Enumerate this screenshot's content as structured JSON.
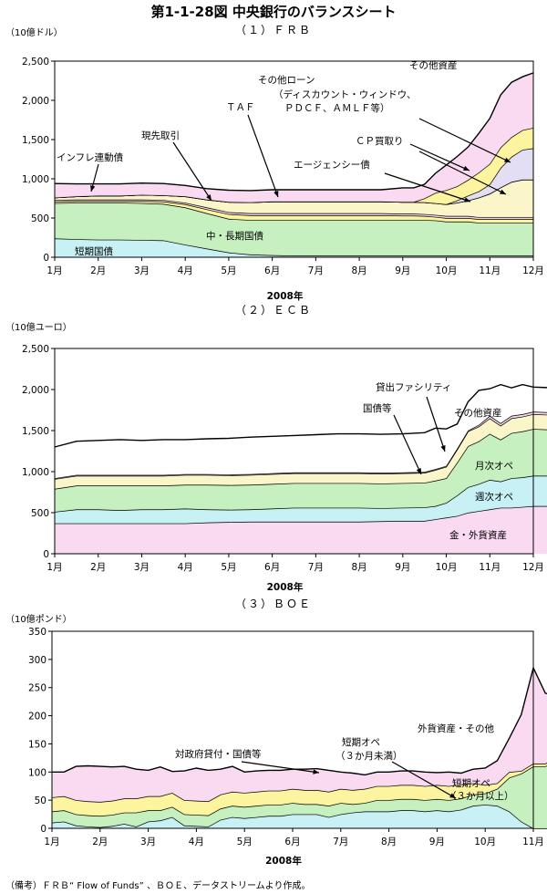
{
  "figure_title": "第1-1-28図 中央銀行のバランスシート",
  "note": "（備考）ＦＲＢ“ Flow of Funds” 、ＢＯＥ、データストリームより作成。",
  "colors": {
    "pink": "#f9d8ef",
    "purple": "#e2dcf3",
    "yellow": "#fdf39a",
    "green": "#c4efbd",
    "cyan": "#c5f0f6",
    "lightyellow": "#fbf6c6",
    "line": "#000000"
  },
  "chart_data": [
    {
      "type": "area",
      "title": "（１）ＦＲＢ",
      "unit": "（10億ドル）",
      "xlabel": "2008年",
      "x_labels": [
        "1月",
        "2月",
        "3月",
        "4月",
        "5月",
        "6月",
        "7月",
        "8月",
        "9月",
        "10月",
        "11月",
        "12月"
      ],
      "ylim": [
        0,
        2500
      ],
      "yticks": [
        "0",
        "500",
        "1,000",
        "1,500",
        "2,000",
        "2,500"
      ],
      "ytick_values": [
        0,
        500,
        1000,
        1500,
        2000,
        2500
      ],
      "x": [
        0,
        0.5,
        1,
        1.5,
        2,
        2.5,
        3,
        3.5,
        4,
        4.5,
        5,
        5.5,
        6,
        6.5,
        7,
        7.5,
        8,
        8.25,
        8.5,
        8.75,
        9,
        9.25,
        9.5,
        9.75,
        10,
        10.25,
        10.5,
        10.75,
        11
      ],
      "series": [
        {
          "name": "短期国債",
          "color": "cyan",
          "values": [
            240,
            230,
            225,
            225,
            220,
            215,
            160,
            110,
            60,
            35,
            25,
            20,
            20,
            20,
            20,
            20,
            20,
            20,
            20,
            20,
            20,
            20,
            20,
            20,
            20,
            20,
            20,
            20,
            20
          ]
        },
        {
          "name": "中・長期国債",
          "color": "green",
          "values": [
            450,
            465,
            470,
            470,
            470,
            465,
            475,
            450,
            430,
            440,
            450,
            455,
            455,
            455,
            455,
            455,
            455,
            455,
            455,
            450,
            435,
            435,
            435,
            420,
            420,
            420,
            420,
            420,
            420
          ]
        },
        {
          "name": "",
          "color": "yellow",
          "values": [
            20,
            20,
            20,
            20,
            25,
            30,
            40,
            50,
            60,
            60,
            60,
            60,
            60,
            60,
            60,
            60,
            55,
            55,
            50,
            45,
            45,
            45,
            45,
            45,
            45,
            45,
            45,
            45,
            45
          ]
        },
        {
          "name": "",
          "color": "pink",
          "values": [
            20,
            20,
            20,
            20,
            20,
            20,
            20,
            25,
            25,
            25,
            25,
            25,
            25,
            25,
            25,
            25,
            25,
            25,
            25,
            25,
            25,
            25,
            25,
            25,
            25,
            25,
            25,
            25,
            25
          ]
        },
        {
          "name": "TAF",
          "color": "lightyellow",
          "values": [
            30,
            40,
            50,
            50,
            60,
            60,
            80,
            100,
            130,
            140,
            150,
            150,
            150,
            150,
            150,
            150,
            150,
            150,
            150,
            150,
            150,
            170,
            200,
            250,
            300,
            380,
            450,
            480,
            480
          ]
        },
        {
          "name": "",
          "color": "yellow",
          "values": [
            0,
            0,
            0,
            0,
            0,
            0,
            0,
            0,
            0,
            0,
            0,
            0,
            0,
            0,
            0,
            0,
            0,
            0,
            0,
            0,
            0,
            0,
            0,
            0,
            0,
            0,
            0,
            0,
            0
          ]
        },
        {
          "name": "その他ローン",
          "color": "purple",
          "values": [
            0,
            0,
            0,
            0,
            0,
            0,
            0,
            0,
            0,
            0,
            0,
            0,
            0,
            0,
            0,
            0,
            0,
            0,
            0,
            0,
            0,
            30,
            60,
            80,
            120,
            250,
            320,
            380,
            400
          ]
        },
        {
          "name": "CP買取り",
          "color": "yellow",
          "values": [
            0,
            0,
            0,
            0,
            0,
            0,
            0,
            0,
            0,
            0,
            0,
            0,
            0,
            0,
            0,
            0,
            0,
            0,
            50,
            130,
            180,
            180,
            200,
            240,
            260,
            260,
            250,
            250,
            260
          ]
        },
        {
          "name": "その他資産",
          "color": "pink",
          "values": [
            180,
            160,
            150,
            150,
            150,
            150,
            140,
            140,
            150,
            150,
            150,
            150,
            150,
            150,
            150,
            150,
            180,
            180,
            180,
            250,
            320,
            380,
            420,
            500,
            580,
            670,
            700,
            680,
            700
          ]
        }
      ],
      "labels": [
        "インフレ連動債",
        "現先取引",
        "ＴＡＦ",
        "その他ローン",
        "（ディスカウント・ウィンドウ、",
        "ＰＤＣＦ、ＡＭＬＦ等）",
        "その他資産",
        "ＣＰ買取り",
        "エージェンシー債",
        "中・長期国債",
        "短期国債"
      ]
    },
    {
      "type": "area",
      "title": "（２）ＥＣＢ",
      "unit": "（10億ユーロ）",
      "xlabel": "2008年",
      "x_labels": [
        "1月",
        "2月",
        "3月",
        "4月",
        "5月",
        "6月",
        "7月",
        "8月",
        "9月",
        "10月",
        "11月",
        "12月"
      ],
      "ylim": [
        0,
        2500
      ],
      "yticks": [
        "0",
        "500",
        "1,000",
        "1,500",
        "2,000",
        "2,500"
      ],
      "ytick_values": [
        0,
        500,
        1000,
        1500,
        2000,
        2500
      ],
      "x": [
        0,
        0.5,
        1,
        1.5,
        2,
        2.5,
        3,
        3.5,
        4,
        4.5,
        5,
        5.5,
        6,
        6.5,
        7,
        7.5,
        8,
        8.5,
        8.75,
        9,
        9.25,
        9.5,
        9.75,
        10,
        10.25,
        10.5,
        10.75,
        11,
        11.5
      ],
      "series": [
        {
          "name": "金・外貨資産",
          "color": "pink",
          "values": [
            370,
            370,
            370,
            370,
            370,
            370,
            370,
            380,
            385,
            390,
            390,
            390,
            390,
            390,
            390,
            395,
            400,
            400,
            420,
            440,
            460,
            500,
            520,
            540,
            560,
            560,
            570,
            580,
            580
          ]
        },
        {
          "name": "週次オペ",
          "color": "cyan",
          "values": [
            140,
            170,
            170,
            160,
            170,
            170,
            180,
            160,
            150,
            150,
            160,
            170,
            170,
            170,
            170,
            160,
            160,
            165,
            160,
            180,
            250,
            310,
            330,
            360,
            320,
            360,
            360,
            370,
            370
          ]
        },
        {
          "name": "月次オペ",
          "color": "green",
          "values": [
            280,
            290,
            290,
            300,
            290,
            290,
            290,
            300,
            300,
            300,
            300,
            300,
            300,
            300,
            300,
            300,
            300,
            300,
            310,
            300,
            400,
            500,
            520,
            560,
            510,
            550,
            560,
            570,
            560
          ]
        },
        {
          "name": "",
          "color": "lightyellow",
          "values": [
            120,
            120,
            120,
            120,
            120,
            120,
            120,
            120,
            120,
            120,
            120,
            120,
            120,
            120,
            120,
            120,
            120,
            120,
            130,
            140,
            160,
            180,
            180,
            190,
            170,
            180,
            180,
            180,
            180
          ]
        },
        {
          "name": "その他資産",
          "color": "pink",
          "values": [
            10,
            10,
            10,
            10,
            10,
            10,
            10,
            10,
            10,
            10,
            10,
            10,
            10,
            10,
            10,
            10,
            10,
            10,
            10,
            10,
            10,
            10,
            20,
            30,
            30,
            30,
            30,
            30,
            30
          ]
        },
        {
          "name": "",
          "color": "white",
          "values": [
            380,
            410,
            420,
            430,
            420,
            430,
            420,
            430,
            440,
            450,
            450,
            450,
            460,
            470,
            470,
            470,
            470,
            480,
            500,
            450,
            300,
            350,
            420,
            330,
            470,
            340,
            360,
            300,
            300
          ]
        }
      ],
      "labels": [
        "貸出ファシリティ",
        "国債等",
        "その他資産",
        "月次オペ",
        "週次オペ",
        "金・外貨資産"
      ]
    },
    {
      "type": "area",
      "title": "（３）ＢＯＥ",
      "unit": "（10億ポンド）",
      "xlabel": "2008年",
      "x_labels": [
        "1月",
        "2月",
        "3月",
        "4月",
        "5月",
        "6月",
        "7月",
        "8月",
        "9月",
        "10月",
        "11月"
      ],
      "ylim": [
        0,
        350
      ],
      "yticks": [
        "0",
        "50",
        "100",
        "150",
        "200",
        "250",
        "300",
        "350"
      ],
      "ytick_values": [
        0,
        50,
        100,
        150,
        200,
        250,
        300,
        350
      ],
      "x": [
        0,
        0.25,
        0.5,
        0.75,
        1,
        1.25,
        1.5,
        1.75,
        2,
        2.25,
        2.5,
        2.75,
        3,
        3.25,
        3.5,
        3.75,
        4,
        4.25,
        4.5,
        4.75,
        5,
        5.25,
        5.5,
        5.75,
        6,
        6.25,
        6.5,
        6.75,
        7,
        7.25,
        7.5,
        7.75,
        8,
        8.25,
        8.5,
        8.75,
        9,
        9.25,
        9.5,
        9.75,
        10,
        10.25,
        10.5,
        10.75,
        11
      ],
      "series": [
        {
          "name": "短期オペ（３か月未満）",
          "color": "cyan",
          "values": [
            10,
            12,
            5,
            3,
            2,
            4,
            8,
            3,
            12,
            14,
            20,
            5,
            4,
            3,
            15,
            20,
            18,
            20,
            22,
            22,
            25,
            25,
            25,
            20,
            25,
            28,
            30,
            30,
            30,
            32,
            32,
            30,
            32,
            30,
            33,
            40,
            42,
            40,
            30,
            12,
            0,
            0,
            0,
            0,
            0
          ]
        },
        {
          "name": "短期オペ（３か月以上）",
          "color": "green",
          "values": [
            20,
            20,
            20,
            20,
            20,
            20,
            20,
            25,
            20,
            18,
            18,
            20,
            20,
            20,
            20,
            20,
            20,
            20,
            20,
            20,
            20,
            18,
            18,
            20,
            20,
            15,
            15,
            20,
            20,
            20,
            20,
            20,
            20,
            20,
            20,
            20,
            20,
            30,
            60,
            85,
            110,
            110,
            120,
            135,
            140
          ]
        },
        {
          "name": "",
          "color": "yellow",
          "values": [
            25,
            25,
            25,
            25,
            25,
            25,
            25,
            25,
            25,
            25,
            25,
            25,
            25,
            25,
            25,
            25,
            25,
            25,
            25,
            25,
            25,
            25,
            25,
            25,
            25,
            25,
            25,
            25,
            25,
            25,
            25,
            25,
            25,
            25,
            25,
            20,
            15,
            10,
            10,
            5,
            5,
            5,
            5,
            5,
            5
          ]
        },
        {
          "name": "外貨資産・その他",
          "color": "pink",
          "values": [
            45,
            43,
            60,
            63,
            63,
            60,
            57,
            52,
            46,
            52,
            38,
            52,
            58,
            55,
            45,
            45,
            37,
            37,
            36,
            36,
            35,
            37,
            38,
            38,
            30,
            30,
            25,
            25,
            25,
            25,
            25,
            25,
            22,
            25,
            20,
            25,
            30,
            40,
            60,
            100,
            170,
            125,
            110,
            80,
            80
          ]
        }
      ],
      "labels": [
        "対政府貸付・国債等",
        "短期オペ",
        "（３か月未満）",
        "外貨資産・その他",
        "短期オペ",
        "（３か月以上）"
      ]
    }
  ]
}
